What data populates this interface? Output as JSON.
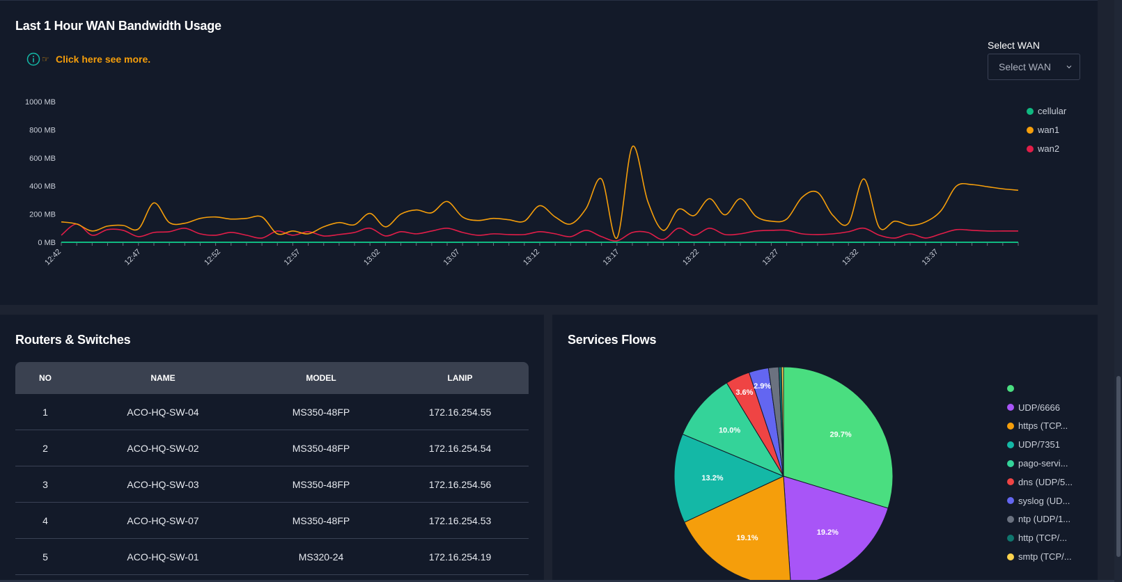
{
  "bandwidth": {
    "title": "Last 1 Hour WAN Bandwidth Usage",
    "info_link": "Click here see more.",
    "select_label": "Select WAN",
    "select_value": "Select WAN",
    "colors": {
      "cellular": "#10b981",
      "wan1": "#f59e0b",
      "wan2": "#e11d48"
    },
    "legend": [
      "cellular",
      "wan1",
      "wan2"
    ]
  },
  "chart_data": {
    "type": "line",
    "title": "Last 1 Hour WAN Bandwidth Usage",
    "xlabel": "",
    "ylabel": "",
    "ylim": [
      0,
      1000
    ],
    "yticks": [
      "0 MB",
      "200 MB",
      "400 MB",
      "600 MB",
      "800 MB",
      "1000 MB"
    ],
    "xticks": [
      "12:42",
      "12:47",
      "12:52",
      "12:57",
      "13:02",
      "13:07",
      "13:12",
      "13:17",
      "13:22",
      "13:27",
      "13:32",
      "13:37"
    ],
    "series": [
      {
        "name": "cellular",
        "values": [
          0,
          0,
          0,
          0,
          0,
          0,
          0,
          0,
          0,
          0,
          0,
          0,
          0,
          0,
          0,
          0,
          0,
          0,
          0,
          0,
          0,
          0,
          0,
          0,
          0,
          0,
          0,
          0,
          0,
          0,
          0,
          0,
          0,
          0,
          0,
          0,
          0,
          0,
          0,
          0,
          0,
          0,
          0,
          0,
          0,
          0,
          0,
          0,
          0,
          0,
          0,
          0,
          0,
          0,
          0,
          0,
          0,
          0,
          0,
          0,
          0,
          0,
          0
        ]
      },
      {
        "name": "wan1",
        "values": [
          145,
          130,
          80,
          115,
          120,
          95,
          280,
          140,
          135,
          170,
          180,
          165,
          170,
          180,
          60,
          80,
          60,
          110,
          140,
          125,
          205,
          110,
          200,
          230,
          210,
          290,
          180,
          155,
          170,
          160,
          150,
          260,
          180,
          130,
          240,
          450,
          30,
          680,
          290,
          85,
          235,
          190,
          310,
          195,
          310,
          185,
          150,
          165,
          320,
          355,
          190,
          135,
          450,
          105,
          150,
          120,
          145,
          225,
          400,
          410,
          395,
          380,
          370
        ]
      },
      {
        "name": "wan2",
        "values": [
          50,
          130,
          50,
          90,
          85,
          40,
          70,
          75,
          100,
          60,
          50,
          70,
          50,
          30,
          80,
          50,
          75,
          45,
          55,
          70,
          100,
          45,
          75,
          60,
          80,
          100,
          70,
          50,
          60,
          55,
          55,
          75,
          60,
          40,
          85,
          40,
          10,
          70,
          70,
          20,
          100,
          50,
          100,
          55,
          60,
          80,
          85,
          85,
          60,
          55,
          60,
          75,
          100,
          50,
          30,
          60,
          30,
          60,
          90,
          85,
          80,
          80,
          80
        ]
      }
    ]
  },
  "routers": {
    "title": "Routers & Switches",
    "columns": [
      "NO",
      "NAME",
      "MODEL",
      "LANIP"
    ],
    "rows": [
      {
        "no": "1",
        "name": "ACO-HQ-SW-04",
        "model": "MS350-48FP",
        "lanip": "172.16.254.55"
      },
      {
        "no": "2",
        "name": "ACO-HQ-SW-02",
        "model": "MS350-48FP",
        "lanip": "172.16.254.54"
      },
      {
        "no": "3",
        "name": "ACO-HQ-SW-03",
        "model": "MS350-48FP",
        "lanip": "172.16.254.56"
      },
      {
        "no": "4",
        "name": "ACO-HQ-SW-07",
        "model": "MS350-48FP",
        "lanip": "172.16.254.53"
      },
      {
        "no": "5",
        "name": "ACO-HQ-SW-01",
        "model": "MS320-24",
        "lanip": "172.16.254.19"
      }
    ]
  },
  "services": {
    "title": "Services Flows",
    "pie": {
      "type": "pie",
      "slices": [
        {
          "label": "",
          "value": 29.7,
          "color": "#4ade80",
          "text": "29.7%"
        },
        {
          "label": "UDP/6666",
          "value": 19.2,
          "color": "#a855f7",
          "text": "19.2%"
        },
        {
          "label": "https (TCP...",
          "value": 19.1,
          "color": "#f59e0b",
          "text": "19.1%"
        },
        {
          "label": "UDP/7351",
          "value": 13.2,
          "color": "#14b8a6",
          "text": "13.2%"
        },
        {
          "label": "pago-servi...",
          "value": 10.0,
          "color": "#34d399",
          "text": "10.0%"
        },
        {
          "label": "dns (UDP/5...",
          "value": 3.6,
          "color": "#ef4444",
          "text": "3.6%"
        },
        {
          "label": "syslog (UD...",
          "value": 2.9,
          "color": "#6366f1",
          "text": "2.9%"
        },
        {
          "label": "ntp (UDP/1...",
          "value": 1.5,
          "color": "#6b7280",
          "text": ""
        },
        {
          "label": "http (TCP/...",
          "value": 0.4,
          "color": "#0f766e",
          "text": ""
        },
        {
          "label": "smtp (TCP/...",
          "value": 0.3,
          "color": "#fcd34d",
          "text": ""
        }
      ]
    }
  }
}
